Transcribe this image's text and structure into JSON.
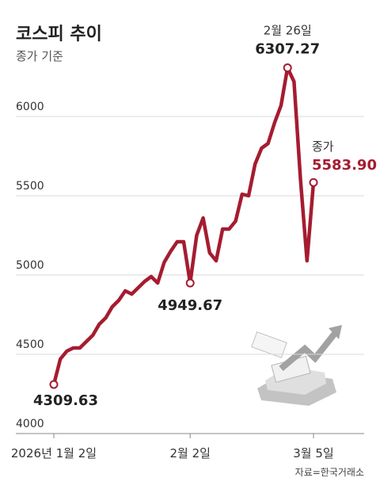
{
  "chart_data": {
    "type": "line",
    "title": "코스피 추이",
    "subtitle": "종가 기준",
    "source": "자료=한국거래소",
    "annotations": [
      "2월 26일",
      "종가"
    ],
    "categories": [
      "2026년 1월 2일",
      null,
      null,
      null,
      null,
      null,
      null,
      null,
      null,
      null,
      null,
      null,
      null,
      null,
      null,
      null,
      null,
      null,
      null,
      null,
      null,
      "2월 2일",
      null,
      null,
      null,
      null,
      null,
      null,
      null,
      null,
      null,
      null,
      null,
      null,
      null,
      null,
      null,
      null,
      null,
      null,
      "3월 5일"
    ],
    "values": [
      4309.63,
      4470,
      4520,
      4540,
      4540,
      4580,
      4620,
      4690,
      4730,
      4800,
      4840,
      4900,
      4880,
      4920,
      4960,
      4990,
      4950,
      5080,
      5150,
      5210,
      5210,
      4949.67,
      5250,
      5360,
      5140,
      5090,
      5290,
      5290,
      5340,
      5510,
      5500,
      5700,
      5800,
      5830,
      5960,
      6070,
      6307.27,
      6220,
      5600,
      5090,
      5583.9
    ],
    "value_labels": [
      "4309.63",
      null,
      null,
      null,
      null,
      null,
      null,
      null,
      null,
      null,
      null,
      null,
      null,
      null,
      null,
      null,
      null,
      null,
      null,
      null,
      null,
      "4949.67",
      null,
      null,
      null,
      null,
      null,
      null,
      null,
      null,
      null,
      null,
      null,
      null,
      null,
      null,
      "6307.27",
      null,
      null,
      null,
      "5583.90"
    ],
    "color": "#a51c30",
    "ylim": [
      4000,
      6600
    ],
    "yticks": [
      4000,
      4500,
      5000,
      5500,
      6000
    ],
    "grid": true
  }
}
